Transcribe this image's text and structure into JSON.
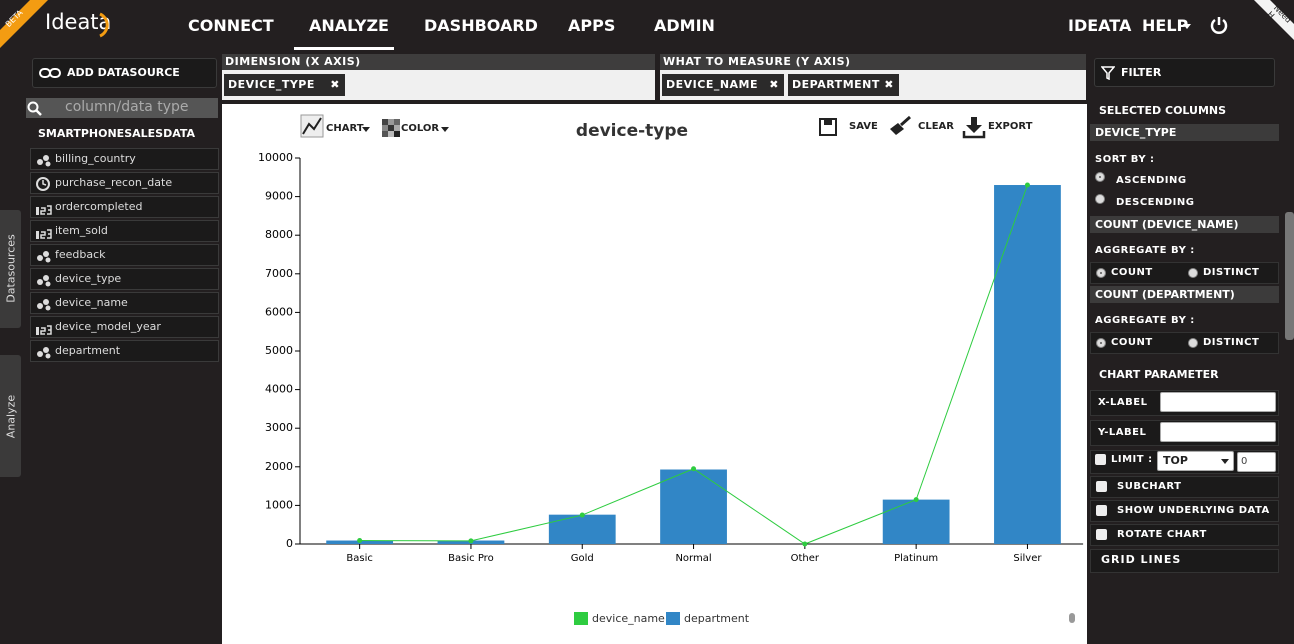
{
  "nav": {
    "badge": "BETA",
    "logo": "Ideata",
    "items": [
      "CONNECT",
      "ANALYZE",
      "DASHBOARD",
      "APPS",
      "ADMIN"
    ],
    "user": "IDEATA",
    "help": "HELP",
    "corner": "Need H"
  },
  "left": {
    "add": "ADD DATASOURCE",
    "search_placeholder": "column/data type",
    "datasource": "SMARTPHONESALESDATA",
    "columns": [
      "billing_country",
      "purchase_recon_date",
      "ordercompleted",
      "item_sold",
      "feedback",
      "device_type",
      "device_name",
      "device_model_year",
      "department"
    ],
    "tabs": [
      "Datasources",
      "Analyze"
    ]
  },
  "shelves": {
    "dimension_label": "DIMENSION (X AXIS)",
    "dimension": [
      "DEVICE_TYPE"
    ],
    "measure_label": "WHAT TO MEASURE (Y AXIS)",
    "measures": [
      "DEVICE_NAME",
      "DEPARTMENT"
    ]
  },
  "toolbar": {
    "chart": "CHART",
    "color": "COLOR",
    "save": "SAVE",
    "clear": "CLEAR",
    "export": "EXPORT"
  },
  "chart_data": {
    "type": "bar",
    "title": "device-type",
    "categories": [
      "Basic",
      "Basic Pro",
      "Gold",
      "Normal",
      "Other",
      "Platinum",
      "Silver"
    ],
    "series": [
      {
        "name": "device_name",
        "type": "line",
        "color": "#2ecc40",
        "values": [
          90,
          80,
          750,
          1950,
          0,
          1150,
          9300
        ]
      },
      {
        "name": "department",
        "type": "bar",
        "color": "#3186c6",
        "values": [
          90,
          90,
          760,
          1930,
          0,
          1150,
          9300
        ]
      }
    ],
    "ylim": [
      0,
      10000
    ],
    "yticks": [
      0,
      1000,
      2000,
      3000,
      4000,
      5000,
      6000,
      7000,
      8000,
      9000,
      10000
    ],
    "grid": false,
    "legend": "bottom"
  },
  "right": {
    "filter": "FILTER",
    "selected": "SELECTED COLUMNS",
    "dim": {
      "name": "DEVICE_TYPE",
      "sort_label": "SORT BY :",
      "options": [
        "ASCENDING",
        "DESCENDING"
      ]
    },
    "measures": [
      {
        "name": "COUNT (DEVICE_NAME)",
        "agg_label": "AGGREGATE BY :",
        "options": [
          "COUNT",
          "DISTINCT"
        ]
      },
      {
        "name": "COUNT (DEPARTMENT)",
        "agg_label": "AGGREGATE BY :",
        "options": [
          "COUNT",
          "DISTINCT"
        ]
      }
    ],
    "param_title": "CHART PARAMETER",
    "xlabel": "X-LABEL",
    "ylabel": "Y-LABEL",
    "limit": "LIMIT :",
    "limit_mode": "TOP",
    "limit_value": "0",
    "checks": [
      "SUBCHART",
      "SHOW UNDERLYING DATA",
      "ROTATE CHART"
    ],
    "grid_lines": "GRID LINES"
  }
}
